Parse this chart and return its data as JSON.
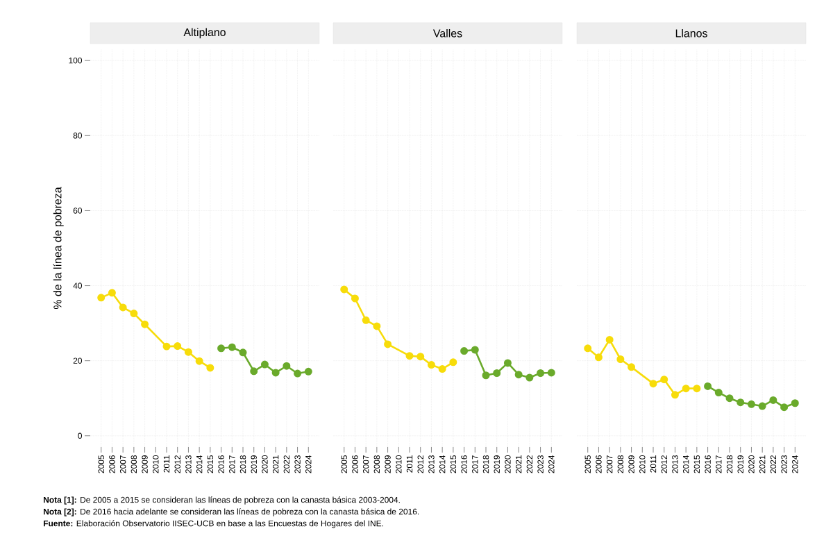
{
  "chart_data": [
    {
      "type": "line",
      "title": "Altiplano",
      "ylabel": "% de la línea de pobreza",
      "xlim": [
        2004,
        2025
      ],
      "xticks": [
        2005,
        2006,
        2007,
        2008,
        2009,
        2010,
        2011,
        2012,
        2013,
        2014,
        2015,
        2016,
        2017,
        2018,
        2019,
        2020,
        2021,
        2022,
        2023,
        2024
      ],
      "ylim": [
        -3,
        103
      ],
      "yticks": [
        0,
        20,
        40,
        60,
        80,
        100
      ],
      "grid": true,
      "marker": "circle",
      "line_style": "solid",
      "series": [
        {
          "color": "#f7dc0a",
          "x": [
            2005,
            2006,
            2007,
            2008,
            2009,
            2011,
            2012,
            2013,
            2014,
            2015
          ],
          "values": [
            36.8,
            38.1,
            34.2,
            32.6,
            29.7,
            23.8,
            23.9,
            22.3,
            19.9,
            18.1
          ]
        },
        {
          "color": "#6aaa2b",
          "x": [
            2016,
            2017,
            2018,
            2019,
            2020,
            2021,
            2022,
            2023,
            2024
          ],
          "values": [
            23.3,
            23.6,
            22.2,
            17.2,
            19.0,
            16.8,
            18.6,
            16.6,
            17.1
          ]
        }
      ],
      "annotations": [
        "**Nota [1]:** De 2005 a 2015 se consideran las líneas de pobreza con la canasta básica 2003-2004.",
        "**Nota [2]:** De 2016 hacia adelante se consideran las líneas de pobreza con la canasta básica de 2016.",
        "**Fuente:** Elaboración Observatorio IISEC-UCB en base a las Encuestas de Hogares del INE."
      ]
    },
    {
      "type": "line",
      "title": "Valles",
      "xlim": [
        2004,
        2025
      ],
      "xticks": [
        2005,
        2006,
        2007,
        2008,
        2009,
        2010,
        2011,
        2012,
        2013,
        2014,
        2015,
        2016,
        2017,
        2018,
        2019,
        2020,
        2021,
        2022,
        2023,
        2024
      ],
      "ylim": [
        -3,
        103
      ],
      "yticks": [
        0,
        20,
        40,
        60,
        80,
        100
      ],
      "tick_labels": "x",
      "grid": true,
      "marker": "circle",
      "line_style": "solid",
      "series": [
        {
          "color": "#f7dc0a",
          "x": [
            2005,
            2006,
            2007,
            2008,
            2009,
            2011,
            2012,
            2013,
            2014,
            2015
          ],
          "values": [
            39.0,
            36.6,
            30.8,
            29.2,
            24.4,
            21.3,
            21.1,
            18.9,
            17.8,
            19.6
          ]
        },
        {
          "color": "#6aaa2b",
          "x": [
            2016,
            2017,
            2018,
            2019,
            2020,
            2021,
            2022,
            2023,
            2024
          ],
          "values": [
            22.6,
            22.9,
            16.1,
            16.7,
            19.4,
            16.3,
            15.5,
            16.7,
            16.8
          ]
        }
      ]
    },
    {
      "type": "line",
      "title": "Llanos",
      "xlim": [
        2004,
        2025
      ],
      "xticks": [
        2005,
        2006,
        2007,
        2008,
        2009,
        2010,
        2011,
        2012,
        2013,
        2014,
        2015,
        2016,
        2017,
        2018,
        2019,
        2020,
        2021,
        2022,
        2023,
        2024
      ],
      "ylim": [
        -3,
        103
      ],
      "yticks": [
        0,
        20,
        40,
        60,
        80,
        100
      ],
      "tick_labels": "x",
      "grid": true,
      "marker": "circle",
      "line_style": "solid",
      "series": [
        {
          "color": "#f7dc0a",
          "x": [
            2005,
            2006,
            2007,
            2008,
            2009,
            2011,
            2012,
            2013,
            2014,
            2015
          ],
          "values": [
            23.3,
            20.9,
            25.6,
            20.4,
            18.3,
            13.9,
            15.0,
            10.9,
            12.6,
            12.6
          ]
        },
        {
          "color": "#6aaa2b",
          "x": [
            2016,
            2017,
            2018,
            2019,
            2020,
            2021,
            2022,
            2023,
            2024
          ],
          "values": [
            13.2,
            11.5,
            10.0,
            8.9,
            8.4,
            7.9,
            9.5,
            7.6,
            8.7
          ]
        }
      ]
    }
  ]
}
